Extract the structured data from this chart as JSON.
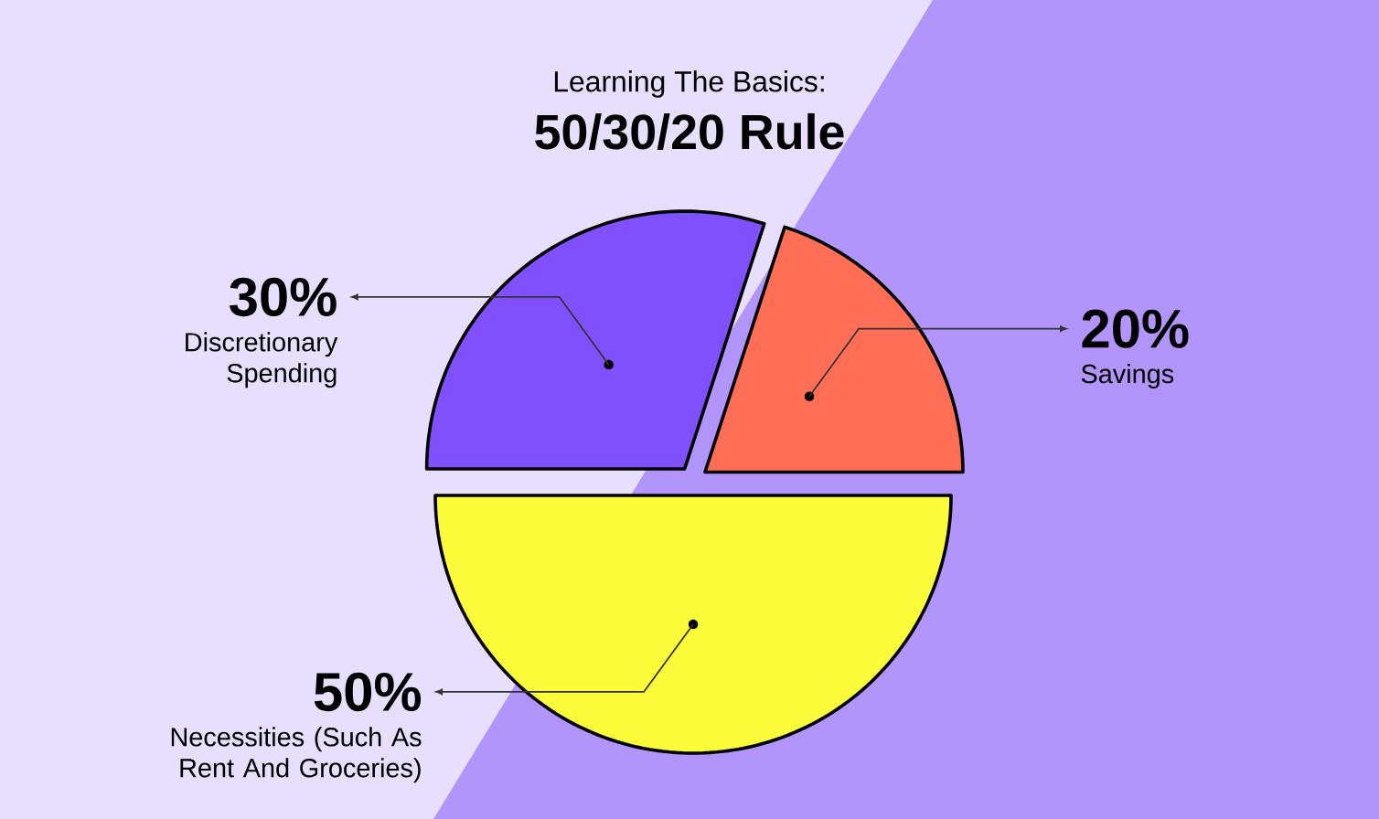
{
  "chart_data": {
    "type": "pie",
    "subtitle": "Learning The Basics:",
    "title": "50/30/20 Rule",
    "categories": [
      "Discretionary Spending",
      "Savings",
      "Necessities (Such As Rent And Groceries)"
    ],
    "values": [
      30,
      20,
      50
    ],
    "colors": [
      "#7f50fc",
      "#ff6e55",
      "#fcfc3b"
    ],
    "value_labels": [
      "30%",
      "20%",
      "50%"
    ]
  }
}
